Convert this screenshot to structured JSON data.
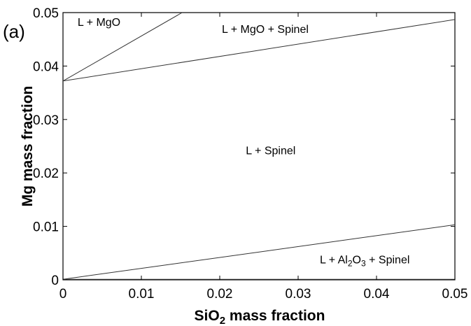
{
  "chart_data": {
    "type": "line",
    "panel_label": "(a)",
    "xlabel": {
      "main": "SiO",
      "sub": "2",
      "rest": " mass fraction"
    },
    "ylabel": "Mg mass fraction",
    "xlim": [
      0,
      0.05
    ],
    "ylim": [
      0,
      0.05
    ],
    "xticks": [
      0,
      0.01,
      0.02,
      0.03,
      0.04,
      0.05
    ],
    "xtick_labels": [
      "0",
      "0.01",
      "0.02",
      "0.03",
      "0.04",
      "0.05"
    ],
    "yticks": [
      0,
      0.01,
      0.02,
      0.03,
      0.04,
      0.05
    ],
    "ytick_labels": [
      "0",
      "0.01",
      "0.02",
      "0.03",
      "0.04",
      "0.05"
    ],
    "grid": false,
    "series": [
      {
        "x": [
          0,
          0.0152
        ],
        "y": [
          0.0372,
          0.05
        ]
      },
      {
        "x": [
          0,
          0.05
        ],
        "y": [
          0.0372,
          0.0487
        ]
      },
      {
        "x": [
          0,
          0.05
        ],
        "y": [
          0.0001,
          0.0103
        ]
      },
      {
        "x": [
          0,
          0.05
        ],
        "y": [
          0.0001,
          0.0001
        ]
      }
    ],
    "regions": [
      {
        "label": "L + MgO",
        "x": 0.0046,
        "y": 0.0475
      },
      {
        "label": "L + MgO + Spinel",
        "x": 0.0258,
        "y": 0.0462
      },
      {
        "label": "L + Spinel",
        "x": 0.0265,
        "y": 0.0235
      },
      {
        "label": "L + Al2O3 + Spinel",
        "x": 0.0385,
        "y": 0.0031,
        "parts": [
          {
            "t": "L + Al",
            "sub": false
          },
          {
            "t": "2",
            "sub": true
          },
          {
            "t": "O",
            "sub": false
          },
          {
            "t": "3",
            "sub": true
          },
          {
            "t": " + Spinel",
            "sub": false
          }
        ]
      }
    ]
  }
}
